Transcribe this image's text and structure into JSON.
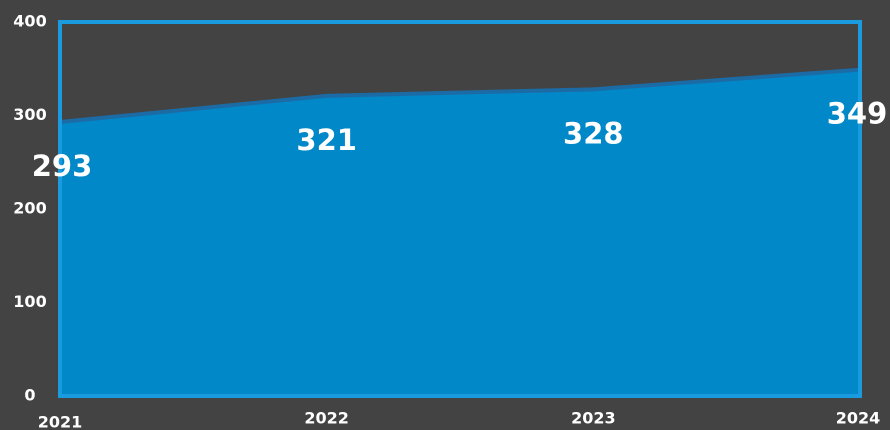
{
  "chart_data": {
    "type": "area",
    "categories": [
      "2021",
      "2022",
      "2023",
      "2024"
    ],
    "values": [
      293,
      321,
      328,
      349
    ],
    "color": "#0088c8",
    "line_color": "#1b6ca6",
    "border_color": "#1a9be0",
    "ylim": [
      0,
      400
    ],
    "yticks": [
      0,
      100,
      200,
      300,
      400
    ],
    "grid": false
  }
}
